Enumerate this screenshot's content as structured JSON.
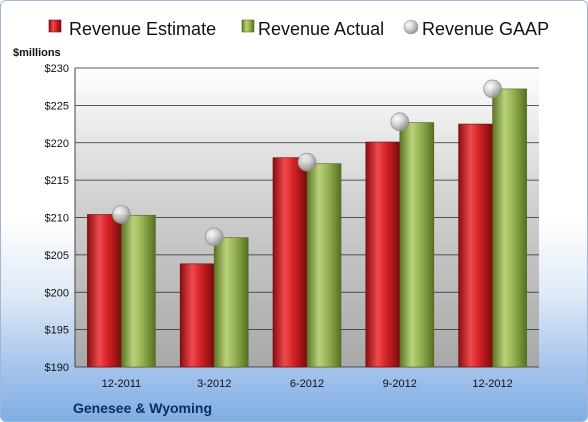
{
  "chart_data": {
    "type": "bar",
    "title": "",
    "company": "Genesee & Wyoming",
    "unit_label": "$millions",
    "categories": [
      "12-2011",
      "3-2012",
      "6-2012",
      "9-2012",
      "12-2012"
    ],
    "ylim": [
      190,
      230
    ],
    "yticks": [
      190,
      195,
      200,
      205,
      210,
      215,
      220,
      225,
      230
    ],
    "ytick_labels": [
      "$190",
      "$195",
      "$200",
      "$205",
      "$210",
      "$215",
      "$220",
      "$225",
      "$230"
    ],
    "grid": true,
    "legend_position": "top",
    "series": [
      {
        "name": "Revenue Estimate",
        "kind": "bar",
        "color": "#c8191c",
        "values": [
          210.4,
          203.8,
          218.0,
          220.1,
          222.5
        ]
      },
      {
        "name": "Revenue Actual",
        "kind": "bar",
        "color": "#8faa4a",
        "values": [
          210.3,
          207.3,
          217.2,
          222.7,
          227.2
        ]
      },
      {
        "name": "Revenue GAAP",
        "kind": "marker",
        "color": "#b9b9b9",
        "values": [
          210.4,
          207.4,
          217.4,
          222.8,
          227.2
        ]
      }
    ]
  }
}
